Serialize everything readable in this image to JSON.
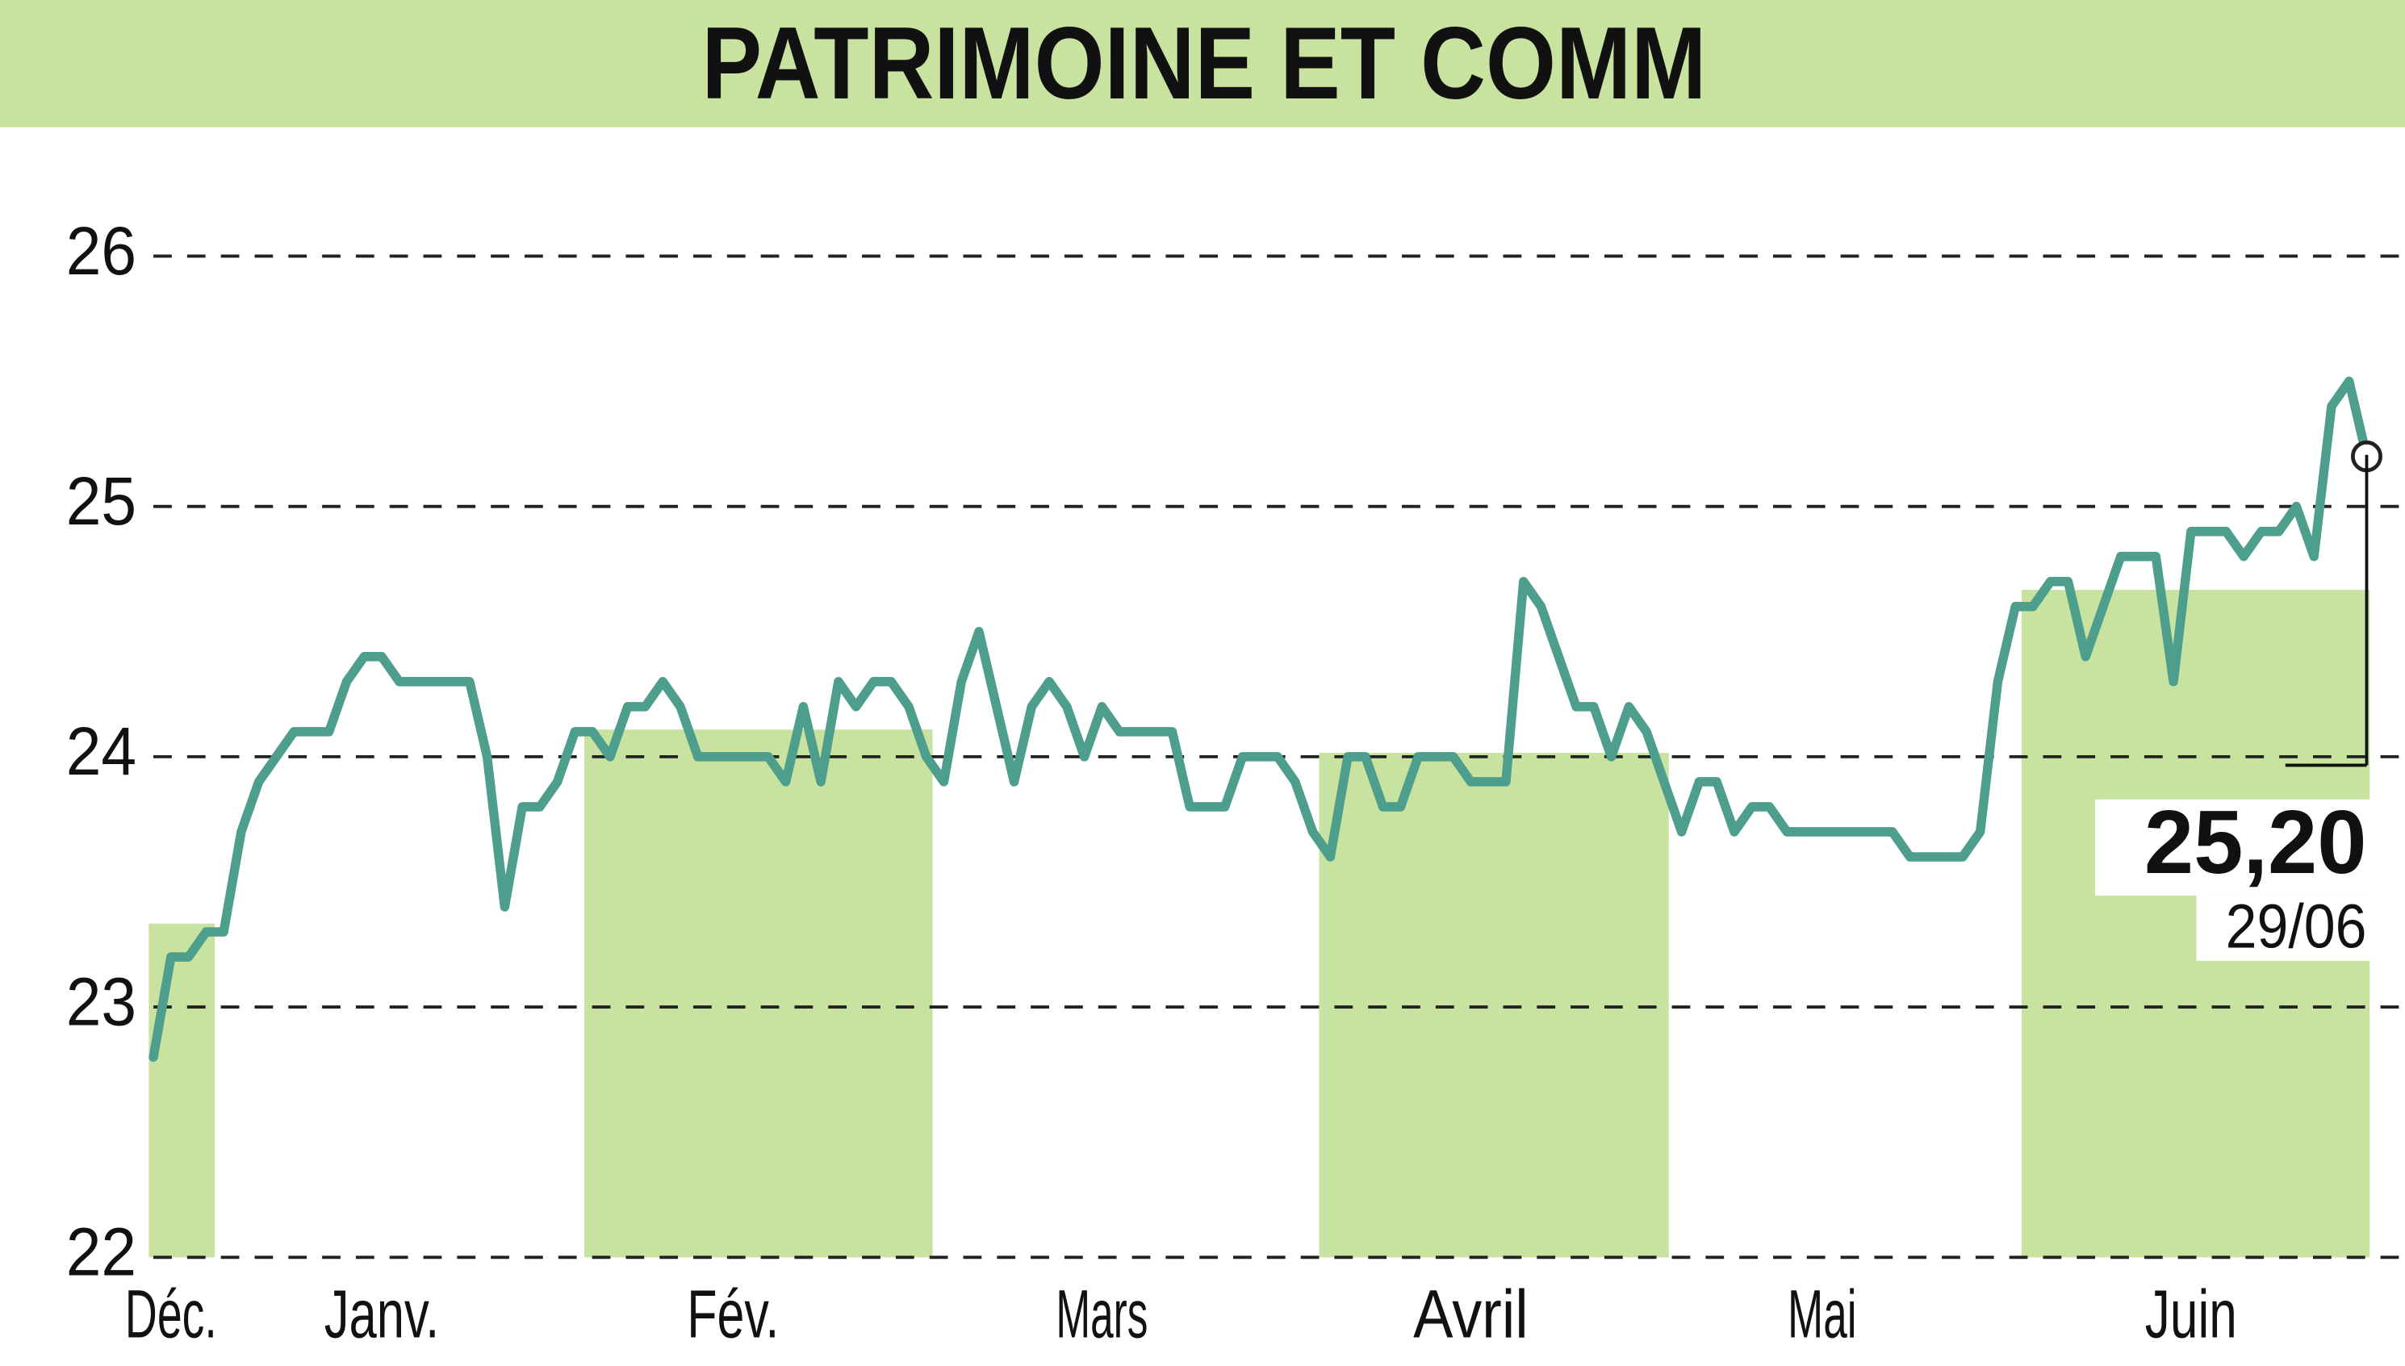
{
  "chart_data": {
    "type": "line",
    "title": "PATRIMOINE ET COMM",
    "categories": [
      null,
      "Déc.",
      null,
      null,
      null,
      null,
      null,
      null,
      null,
      null,
      null,
      null,
      null,
      "Janv.",
      null,
      null,
      null,
      null,
      null,
      null,
      null,
      null,
      null,
      null,
      null,
      null,
      null,
      null,
      null,
      null,
      null,
      null,
      null,
      "Fév.",
      null,
      null,
      null,
      null,
      null,
      null,
      null,
      null,
      null,
      null,
      null,
      null,
      null,
      null,
      null,
      null,
      null,
      null,
      null,
      null,
      "Mars",
      null,
      null,
      null,
      null,
      null,
      null,
      null,
      null,
      null,
      null,
      null,
      null,
      null,
      null,
      null,
      null,
      null,
      null,
      null,
      null,
      "Avril",
      null,
      null,
      null,
      null,
      null,
      null,
      null,
      null,
      null,
      null,
      null,
      null,
      null,
      null,
      null,
      null,
      null,
      null,
      null,
      "Mai",
      null,
      null,
      null,
      null,
      null,
      null,
      null,
      null,
      null,
      null,
      null,
      null,
      null,
      null,
      null,
      null,
      null,
      null,
      null,
      null,
      "Juin",
      null,
      null,
      null,
      null,
      null,
      null,
      null,
      null,
      null,
      null
    ],
    "series": [
      {
        "color": "#4d9e8c",
        "values": [
          22.8,
          23.2,
          23.2,
          23.3,
          23.3,
          23.7,
          23.9,
          24.0,
          24.1,
          24.1,
          24.1,
          24.3,
          24.4,
          24.4,
          24.3,
          24.3,
          24.3,
          24.3,
          24.3,
          24.0,
          23.4,
          23.8,
          23.8,
          23.9,
          24.1,
          24.1,
          24.0,
          24.2,
          24.2,
          24.3,
          24.2,
          24.0,
          24.0,
          24.0,
          24.0,
          24.0,
          23.9,
          24.2,
          23.9,
          24.3,
          24.2,
          24.3,
          24.3,
          24.2,
          24.0,
          23.9,
          24.3,
          24.5,
          24.2,
          23.9,
          24.2,
          24.3,
          24.2,
          24.0,
          24.2,
          24.1,
          24.1,
          24.1,
          24.1,
          23.8,
          23.8,
          23.8,
          24.0,
          24.0,
          24.0,
          23.9,
          23.7,
          23.6,
          24.0,
          24.0,
          23.8,
          23.8,
          24.0,
          24.0,
          24.0,
          23.9,
          23.9,
          23.9,
          24.7,
          24.6,
          24.4,
          24.2,
          24.2,
          24.0,
          24.2,
          24.1,
          23.9,
          23.7,
          23.9,
          23.9,
          23.7,
          23.8,
          23.8,
          23.7,
          23.7,
          23.7,
          23.7,
          23.7,
          23.7,
          23.7,
          23.6,
          23.6,
          23.6,
          23.6,
          23.7,
          24.3,
          24.6,
          24.6,
          24.7,
          24.7,
          24.4,
          24.6,
          24.8,
          24.8,
          24.8,
          24.3,
          24.9,
          24.9,
          24.9,
          24.8,
          24.9,
          24.9,
          25.0,
          24.8,
          25.4,
          25.5,
          25.2
        ],
        "value_labels_last": "25,20"
      }
    ],
    "last_date": "29/06",
    "ylim": [
      22,
      26
    ],
    "yticks": [
      22,
      23,
      24,
      25,
      26
    ],
    "grid": true
  }
}
